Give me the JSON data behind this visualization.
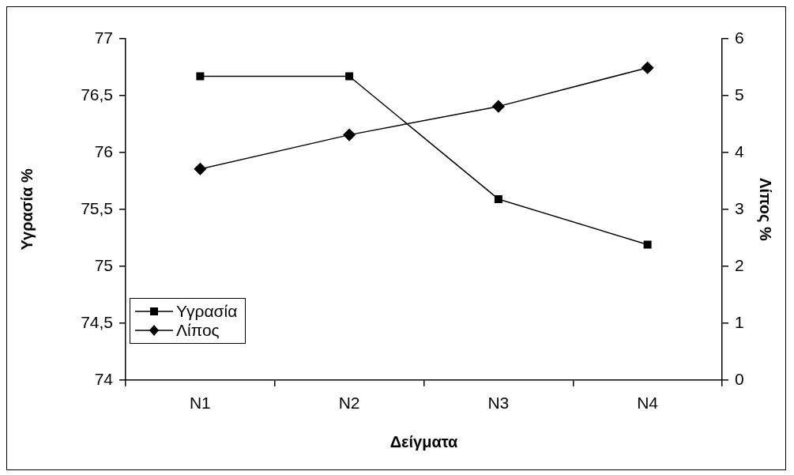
{
  "chart_data": {
    "type": "line",
    "xlabel": "Δείγματα",
    "ylabel": "Υγρασία %",
    "y2label": "Λίπος %",
    "categories": [
      "N1",
      "N2",
      "N3",
      "N4"
    ],
    "series": [
      {
        "name": "Υγρασία",
        "color": "#000000",
        "marker": "square",
        "values": [
          76.67,
          76.67,
          75.59,
          75.19
        ]
      },
      {
        "name": "Λίπος",
        "color": "#000000",
        "marker": "diamond",
        "axis": "y2",
        "values": [
          3.71,
          4.31,
          4.81,
          5.49
        ]
      }
    ],
    "ylim": [
      74,
      77
    ],
    "yticks": [
      74,
      {
        "value": 74.5,
        "label": "74,5"
      },
      75,
      {
        "value": 75.5,
        "label": "75,5"
      },
      76,
      {
        "value": 76.5,
        "label": "76,5"
      },
      77
    ],
    "y2lim": [
      0,
      6
    ],
    "y2ticks": [
      0,
      1,
      2,
      3,
      4,
      5,
      6
    ],
    "grid": false,
    "legend": "bottom left",
    "line_style": "solid"
  }
}
